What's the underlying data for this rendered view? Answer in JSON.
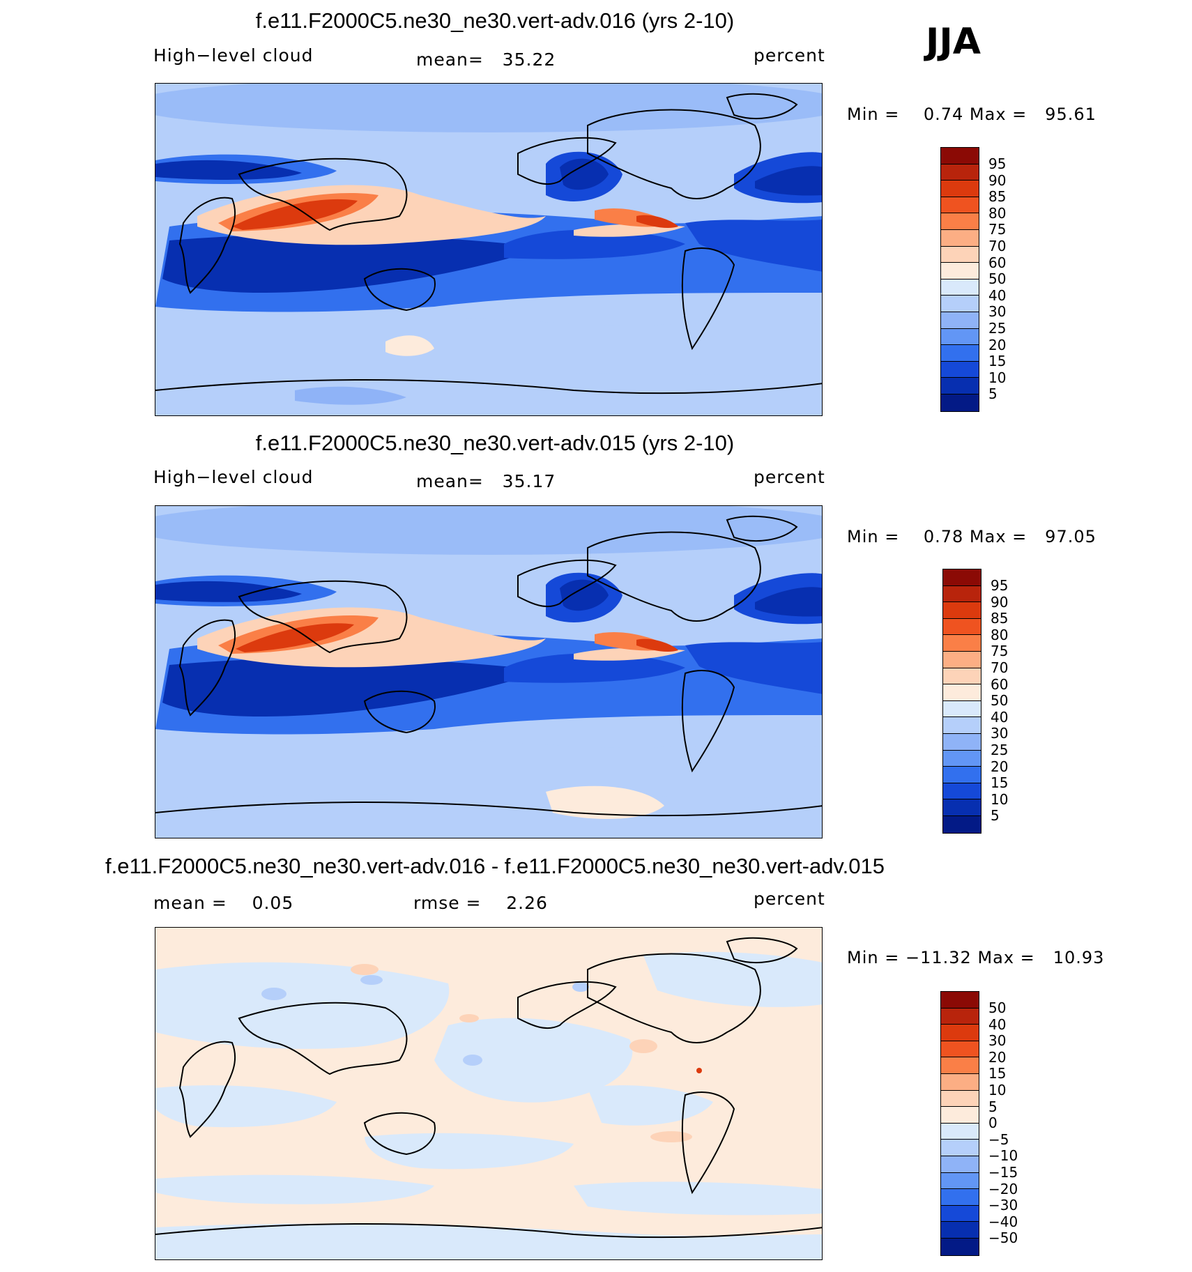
{
  "season": "JJA",
  "panels": [
    {
      "title": "f.e11.F2000C5.ne30_ne30.vert-adv.016 (yrs 2-10)",
      "left_label": "High−level cloud",
      "center_label": "mean=   35.22",
      "right_label": "percent",
      "min_label": "Min =",
      "min_value": "0.74",
      "max_label": "Max =",
      "max_value": "95.61",
      "colorbar_labels": [
        "95",
        "90",
        "85",
        "80",
        "75",
        "70",
        "60",
        "50",
        "40",
        "30",
        "25",
        "20",
        "15",
        "10",
        "5"
      ]
    },
    {
      "title": "f.e11.F2000C5.ne30_ne30.vert-adv.015 (yrs 2-10)",
      "left_label": "High−level cloud",
      "center_label": "mean=   35.17",
      "right_label": "percent",
      "min_label": "Min =",
      "min_value": "0.78",
      "max_label": "Max =",
      "max_value": "97.05",
      "colorbar_labels": [
        "95",
        "90",
        "85",
        "80",
        "75",
        "70",
        "60",
        "50",
        "40",
        "30",
        "25",
        "20",
        "15",
        "10",
        "5"
      ]
    },
    {
      "title": "f.e11.F2000C5.ne30_ne30.vert-adv.016 - f.e11.F2000C5.ne30_ne30.vert-adv.015",
      "left_label": "mean =    0.05",
      "center_label": "rmse =    2.26",
      "right_label": "percent",
      "min_label": "Min =",
      "min_value": "−11.32",
      "max_label": "Max =",
      "max_value": "10.93",
      "colorbar_labels": [
        "50",
        "40",
        "30",
        "20",
        "15",
        "10",
        "5",
        "0",
        "−5",
        "−10",
        "−15",
        "−20",
        "−30",
        "−40",
        "−50"
      ]
    }
  ],
  "colors": {
    "scale": [
      "#8b0a05",
      "#b8240c",
      "#dc3a0e",
      "#ef5320",
      "#fa7f47",
      "#fcae84",
      "#fdd3b8",
      "#fdebdc",
      "#d9e9fb",
      "#b5cffa",
      "#8fb3f7",
      "#6296f5",
      "#3270ee",
      "#1549d8",
      "#072fb0",
      "#031a86"
    ],
    "coast": "#000000"
  }
}
